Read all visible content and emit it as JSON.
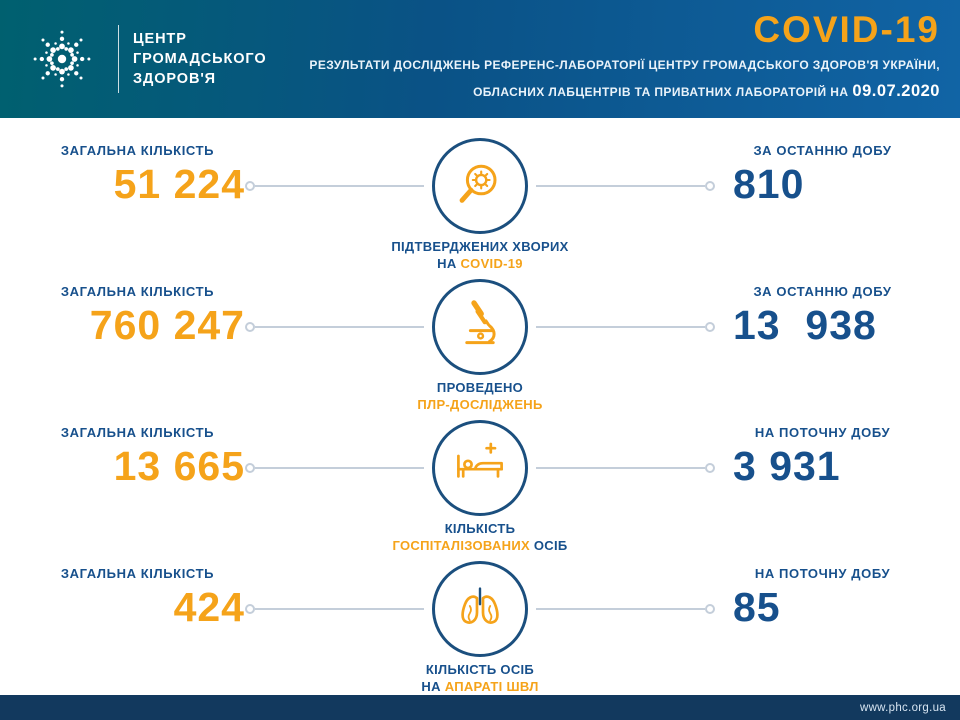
{
  "colors": {
    "accent_orange": "#F5A31A",
    "primary_blue": "#17508C",
    "header_gradient_start": "#00606F",
    "header_gradient_end": "#1164A5",
    "footer_navy": "#12395E"
  },
  "header": {
    "org_name_line1": "ЦЕНТР",
    "org_name_line2": "ГРОМАДСЬКОГО",
    "org_name_line3": "ЗДОРОВ'Я",
    "title": "COVID-19",
    "subtitle_line1": "РЕЗУЛЬТАТИ ДОСЛІДЖЕНЬ РЕФЕРЕНС-ЛАБОРАТОРІЇ ЦЕНТРУ ГРОМАДСЬКОГО ЗДОРОВ'Я УКРАЇНИ,",
    "subtitle_line2": "ОБЛАСНИХ ЛАБЦЕНТРІВ ТА ПРИВАТНИХ ЛАБОРАТОРІЙ НА",
    "date": "09.07.2020"
  },
  "rows": [
    {
      "icon": "search-virus-icon",
      "left_label": "ЗАГАЛЬНА КІЛЬКІСТЬ",
      "left_value": "51 224",
      "caption_line1": "ПІДТВЕРДЖЕНИХ ХВОРИХ",
      "caption_line2_blue": "НА",
      "caption_line2_orange": "COVID-19",
      "right_label": "ЗА ОСТАННЮ ДОБУ",
      "right_value": "810"
    },
    {
      "icon": "microscope-icon",
      "left_label": "ЗАГАЛЬНА КІЛЬКІСТЬ",
      "left_value": "760 247",
      "caption_line1": "ПРОВЕДЕНО",
      "caption_line2_orange": "ПЛР-ДОСЛІДЖЕНЬ",
      "right_label": "ЗА ОСТАННЮ ДОБУ",
      "right_value": "13  938"
    },
    {
      "icon": "hospital-bed-icon",
      "left_label": "ЗАГАЛЬНА КІЛЬКІСТЬ",
      "left_value": "13 665",
      "caption_line1": "КІЛЬКІСТЬ",
      "caption_line2_orange": "ГОСПІТАЛІЗОВАНИХ",
      "caption_line2_blue_after": "ОСІБ",
      "right_label": "НА ПОТОЧНУ ДОБУ",
      "right_value": "3 931"
    },
    {
      "icon": "lungs-icon",
      "left_label": "ЗАГАЛЬНА КІЛЬКІСТЬ",
      "left_value": "424",
      "caption_line1": "КІЛЬКІСТЬ ОСІБ",
      "caption_line2_blue": "НА",
      "caption_line2_orange": "АПАРАТІ ШВЛ",
      "right_label": "НА ПОТОЧНУ ДОБУ",
      "right_value": "85"
    }
  ],
  "footer": {
    "url": "www.phc.org.ua"
  }
}
